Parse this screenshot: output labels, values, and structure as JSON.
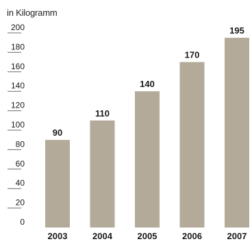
{
  "chart_data": {
    "type": "bar",
    "unit_label": "in Kilogramm",
    "categories": [
      "2003",
      "2004",
      "2005",
      "2006",
      "2007"
    ],
    "values": [
      90,
      110,
      140,
      170,
      195
    ],
    "data_labels": [
      "90",
      "110",
      "140",
      "170",
      "195"
    ],
    "y_ticks": [
      0,
      20,
      40,
      60,
      80,
      100,
      120,
      140,
      160,
      180,
      200
    ],
    "y_tick_labels": [
      "0",
      "20",
      "40",
      "60",
      "80",
      "100",
      "120",
      "140",
      "160",
      "180",
      "200"
    ],
    "ylim": [
      0,
      200
    ],
    "grid": false,
    "legend": "none",
    "colors": {
      "bar": "#b3aa99",
      "tick_line": "#6b6b6b",
      "text": "#1a1a1a"
    }
  }
}
